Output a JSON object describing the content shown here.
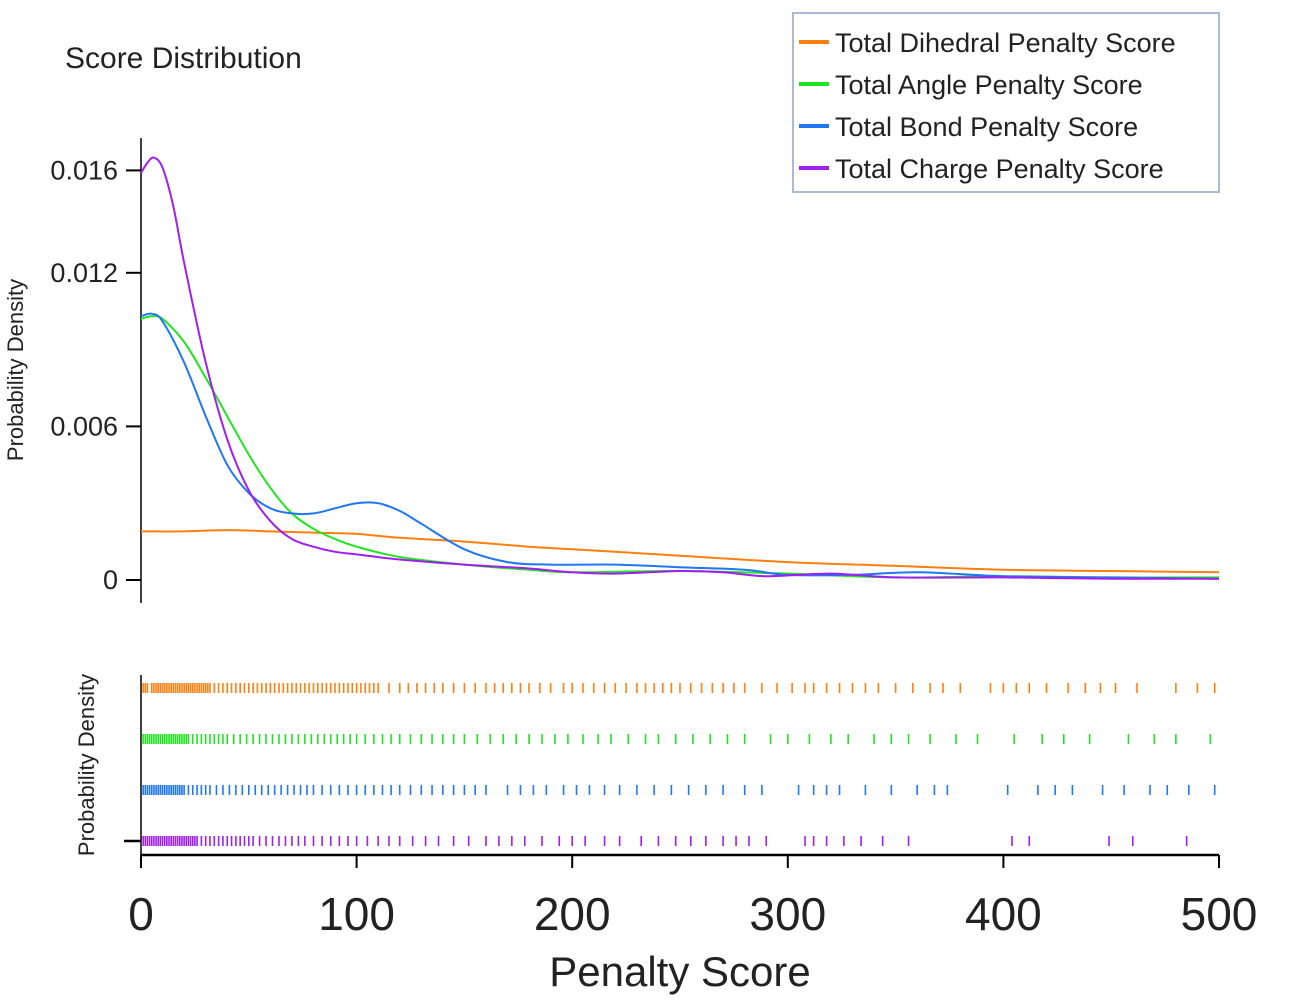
{
  "chart_data": {
    "type": "line",
    "title": "Score Distribution",
    "xlabel": "Penalty Score",
    "ylabel": "Probability Density",
    "rug_ylabel": "Probability Density",
    "xlim": [
      0,
      500
    ],
    "ylim": [
      0,
      0.017
    ],
    "x_ticks": [
      0,
      100,
      200,
      300,
      400,
      500
    ],
    "x_tick_labels": [
      "0",
      "100",
      "200",
      "300",
      "400",
      "500"
    ],
    "y_ticks": [
      0,
      0.006,
      0.012,
      0.016
    ],
    "y_tick_labels": [
      "0",
      "0.006",
      "0.012",
      "0.016"
    ],
    "grid": false,
    "legend_position": "top-right",
    "colors": {
      "dihedral": "#ff7f0e",
      "angle": "#1fe51f",
      "bond": "#1f77f4",
      "charge": "#a01ff0"
    },
    "series": [
      {
        "name": "Total Dihedral Penalty Score",
        "color": "#ff7f0e",
        "x": [
          0,
          20,
          40,
          60,
          80,
          100,
          120,
          150,
          180,
          200,
          250,
          300,
          350,
          400,
          450,
          500
        ],
        "y": [
          0.0019,
          0.0019,
          0.00195,
          0.0019,
          0.00185,
          0.0018,
          0.00165,
          0.0015,
          0.0013,
          0.0012,
          0.00095,
          0.0007,
          0.00055,
          0.0004,
          0.00035,
          0.0003
        ]
      },
      {
        "name": "Total Angle Penalty Score",
        "color": "#1fe51f",
        "x": [
          0,
          5,
          10,
          20,
          30,
          40,
          50,
          60,
          70,
          80,
          90,
          100,
          120,
          150,
          180,
          200,
          250,
          300,
          350,
          400,
          450,
          500
        ],
        "y": [
          0.0102,
          0.0103,
          0.0102,
          0.0093,
          0.0079,
          0.0064,
          0.0049,
          0.0036,
          0.0026,
          0.002,
          0.0016,
          0.0013,
          0.0009,
          0.0006,
          0.0004,
          0.0003,
          0.00035,
          0.00025,
          0.0001,
          0.00015,
          0.0001,
          0.0001
        ]
      },
      {
        "name": "Total Bond Penalty Score",
        "color": "#1f77f4",
        "x": [
          0,
          5,
          10,
          20,
          30,
          40,
          50,
          60,
          70,
          80,
          90,
          100,
          110,
          120,
          130,
          150,
          170,
          190,
          220,
          250,
          280,
          300,
          330,
          360,
          400,
          450,
          500
        ],
        "y": [
          0.0103,
          0.0104,
          0.0101,
          0.0085,
          0.0064,
          0.0045,
          0.0034,
          0.0028,
          0.0026,
          0.0026,
          0.0028,
          0.003,
          0.003,
          0.0027,
          0.0022,
          0.0012,
          0.0007,
          0.0006,
          0.0006,
          0.0005,
          0.0004,
          0.0002,
          0.0002,
          0.0003,
          0.00015,
          0.0001,
          5e-05
        ]
      },
      {
        "name": "Total Charge Penalty Score",
        "color": "#a01ff0",
        "x": [
          0,
          3,
          6,
          10,
          15,
          20,
          30,
          40,
          50,
          60,
          70,
          80,
          90,
          100,
          120,
          150,
          180,
          200,
          220,
          250,
          270,
          290,
          320,
          350,
          400,
          450,
          500
        ],
        "y": [
          0.0159,
          0.0163,
          0.0165,
          0.0161,
          0.0146,
          0.0124,
          0.0085,
          0.0055,
          0.0035,
          0.0023,
          0.0016,
          0.0013,
          0.0011,
          0.001,
          0.0008,
          0.0006,
          0.00045,
          0.0003,
          0.00025,
          0.00035,
          0.0003,
          0.00015,
          0.00025,
          0.0001,
          0.0001,
          5e-05,
          5e-05
        ]
      }
    ],
    "rug_series": [
      {
        "name": "Total Dihedral Penalty Score",
        "color": "#ff7f0e",
        "x": [
          1,
          2,
          3,
          5,
          6,
          7,
          8,
          9,
          10,
          11,
          12,
          13,
          14,
          15,
          16,
          17,
          18,
          19,
          20,
          21,
          22,
          23,
          24,
          25,
          26,
          27,
          28,
          29,
          30,
          31,
          32,
          34,
          36,
          38,
          40,
          42,
          44,
          46,
          48,
          50,
          52,
          54,
          56,
          58,
          60,
          62,
          64,
          66,
          68,
          70,
          72,
          74,
          76,
          78,
          80,
          82,
          84,
          86,
          88,
          90,
          92,
          94,
          96,
          98,
          100,
          102,
          104,
          106,
          108,
          110,
          115,
          120,
          124,
          128,
          132,
          136,
          140,
          145,
          150,
          155,
          160,
          164,
          168,
          172,
          176,
          180,
          185,
          190,
          196,
          200,
          205,
          210,
          215,
          220,
          225,
          230,
          234,
          238,
          242,
          246,
          250,
          255,
          260,
          265,
          270,
          275,
          280,
          288,
          295,
          302,
          308,
          312,
          318,
          324,
          330,
          336,
          342,
          350,
          358,
          366,
          372,
          380,
          394,
          400,
          406,
          412,
          420,
          430,
          438,
          445,
          452,
          462,
          480,
          490,
          498
        ]
      },
      {
        "name": "Total Angle Penalty Score",
        "color": "#1fe51f",
        "x": [
          1,
          2,
          3,
          4,
          5,
          6,
          7,
          8,
          9,
          10,
          11,
          12,
          13,
          14,
          15,
          16,
          17,
          18,
          19,
          20,
          21,
          22,
          24,
          26,
          28,
          30,
          32,
          34,
          36,
          38,
          40,
          43,
          46,
          49,
          52,
          55,
          58,
          61,
          64,
          67,
          70,
          73,
          76,
          79,
          82,
          85,
          88,
          91,
          94,
          97,
          100,
          104,
          108,
          112,
          116,
          120,
          125,
          130,
          135,
          140,
          145,
          150,
          156,
          162,
          168,
          174,
          180,
          186,
          192,
          198,
          205,
          212,
          218,
          226,
          234,
          240,
          248,
          256,
          264,
          272,
          280,
          292,
          300,
          310,
          320,
          328,
          340,
          348,
          356,
          366,
          378,
          388,
          405,
          418,
          428,
          440,
          458,
          470,
          480,
          496
        ]
      },
      {
        "name": "Total Bond Penalty Score",
        "color": "#1f77f4",
        "x": [
          1,
          2,
          3,
          4,
          5,
          6,
          7,
          8,
          9,
          10,
          11,
          12,
          13,
          14,
          15,
          16,
          17,
          18,
          19,
          20,
          22,
          24,
          26,
          28,
          30,
          32,
          35,
          38,
          41,
          44,
          47,
          50,
          53,
          56,
          59,
          62,
          65,
          68,
          71,
          74,
          77,
          80,
          84,
          88,
          92,
          96,
          100,
          104,
          108,
          112,
          116,
          120,
          125,
          130,
          135,
          140,
          145,
          150,
          155,
          160,
          170,
          176,
          182,
          188,
          196,
          202,
          208,
          215,
          222,
          230,
          238,
          246,
          254,
          262,
          270,
          280,
          288,
          305,
          312,
          318,
          324,
          336,
          348,
          360,
          368,
          374,
          402,
          416,
          424,
          432,
          446,
          456,
          468,
          476,
          486,
          498
        ]
      },
      {
        "name": "Total Charge Penalty Score",
        "color": "#a01ff0",
        "x": [
          1,
          2,
          3,
          4,
          5,
          6,
          7,
          8,
          9,
          10,
          11,
          12,
          13,
          14,
          15,
          16,
          17,
          18,
          19,
          20,
          21,
          22,
          23,
          24,
          25,
          26,
          28,
          30,
          32,
          34,
          36,
          38,
          40,
          42,
          44,
          46,
          48,
          50,
          52,
          55,
          58,
          61,
          64,
          67,
          70,
          73,
          76,
          80,
          84,
          88,
          92,
          96,
          100,
          105,
          110,
          115,
          120,
          126,
          132,
          138,
          145,
          152,
          160,
          166,
          172,
          178,
          186,
          194,
          200,
          206,
          215,
          222,
          232,
          240,
          248,
          255,
          262,
          270,
          276,
          282,
          290,
          308,
          312,
          318,
          326,
          334,
          344,
          356,
          404,
          412,
          449,
          460,
          485
        ]
      }
    ]
  }
}
